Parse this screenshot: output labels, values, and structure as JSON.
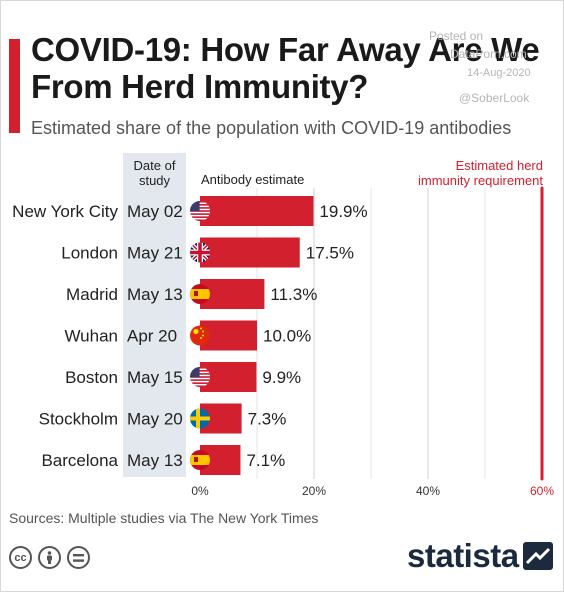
{
  "header": {
    "title": "COVID-19: How Far Away Are We From Herd Immunity?",
    "subtitle": "Estimated share of the population with COVID-19 antibodies"
  },
  "watermark": {
    "posted": "Posted on",
    "site": "DataPorn.com",
    "date": "14-Aug-2020",
    "handle": "@SoberLook"
  },
  "colors": {
    "accent": "#d3202f",
    "bar": "#d3202f",
    "threshold": "#d3202f",
    "date_column_bg": "#e3e8ee",
    "brand": "#1b2a3d"
  },
  "chart_data": {
    "type": "bar",
    "orientation": "horizontal",
    "title": "COVID-19: How Far Away Are We From Herd Immunity?",
    "subtitle": "Estimated share of the population with COVID-19 antibodies",
    "column_headers": {
      "date": "Date of study",
      "estimate": "Antibody estimate"
    },
    "categories": [
      "New York City",
      "London",
      "Madrid",
      "Wuhan",
      "Boston",
      "Stockholm",
      "Barcelona"
    ],
    "dates": [
      "May 02",
      "May 21",
      "May 13",
      "Apr 20",
      "May 15",
      "May 20",
      "May 13"
    ],
    "flags": [
      "us-flag-icon",
      "uk-flag-icon",
      "spain-flag-icon",
      "china-flag-icon",
      "us-flag-icon",
      "sweden-flag-icon",
      "spain-flag-icon"
    ],
    "values": [
      19.9,
      17.5,
      11.3,
      10.0,
      9.9,
      7.3,
      7.1
    ],
    "value_labels": [
      "19.9%",
      "17.5%",
      "11.3%",
      "10.0%",
      "9.9%",
      "7.3%",
      "7.1%"
    ],
    "xlim": [
      0,
      60
    ],
    "xticks": [
      0,
      20,
      40,
      60
    ],
    "xtick_labels": [
      "0%",
      "20%",
      "40%",
      "60%"
    ],
    "grid": true,
    "threshold": {
      "value": 60,
      "label": "Estimated herd immunity requirement"
    }
  },
  "footer": {
    "source": "Sources: Multiple studies via The New York Times",
    "license_icons": [
      "cc-icon",
      "attribution-icon",
      "no-derivatives-icon"
    ],
    "brand": "statista"
  }
}
